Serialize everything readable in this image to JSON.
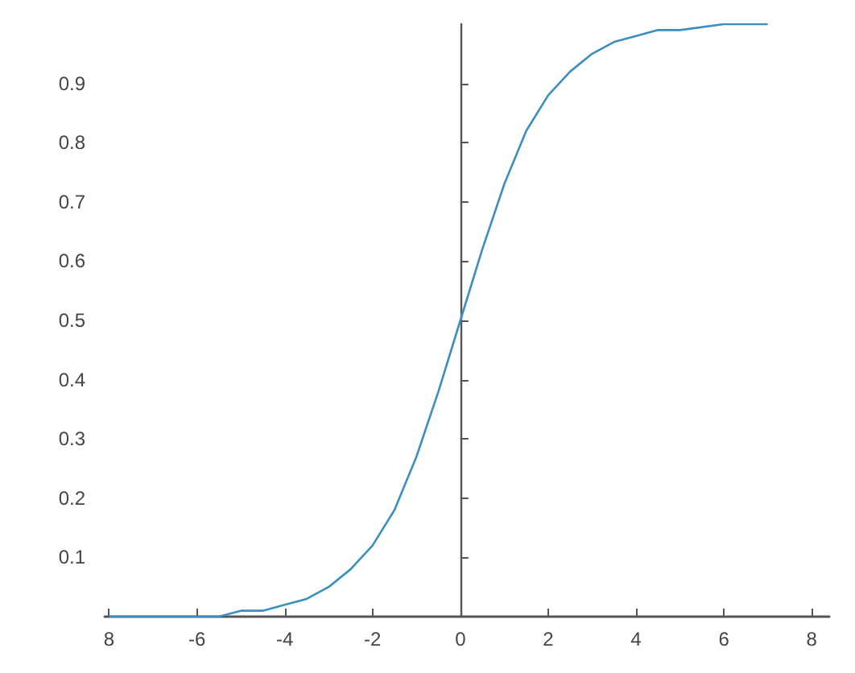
{
  "chart_data": {
    "type": "line",
    "x": [
      -8,
      -7,
      -6,
      -5.5,
      -5,
      -4.5,
      -4,
      -3.5,
      -3,
      -2.5,
      -2,
      -1.5,
      -1,
      -0.5,
      0,
      0.5,
      1,
      1.5,
      2,
      2.5,
      3,
      3.5,
      4,
      4.5,
      5,
      6,
      7
    ],
    "series": [
      {
        "color": "#3a8fc0",
        "values": [
          0,
          0,
          0,
          0,
          0.01,
          0.01,
          0.02,
          0.03,
          0.05,
          0.08,
          0.12,
          0.18,
          0.27,
          0.38,
          0.5,
          0.62,
          0.73,
          0.82,
          0.88,
          0.92,
          0.95,
          0.97,
          0.98,
          0.99,
          0.99,
          1,
          1
        ]
      }
    ],
    "xlim": [
      -8.1,
      8.4
    ],
    "xticks": [
      {
        "value": -8,
        "label": "8"
      },
      -6,
      -4,
      -2,
      0,
      2,
      4,
      6,
      8
    ],
    "ylim": [
      0,
      1
    ],
    "yticks": [
      0.1,
      0.2,
      0.3,
      0.4,
      0.5,
      0.6,
      0.7,
      0.8,
      0.9
    ],
    "marker": "none",
    "line_style": "solid"
  }
}
